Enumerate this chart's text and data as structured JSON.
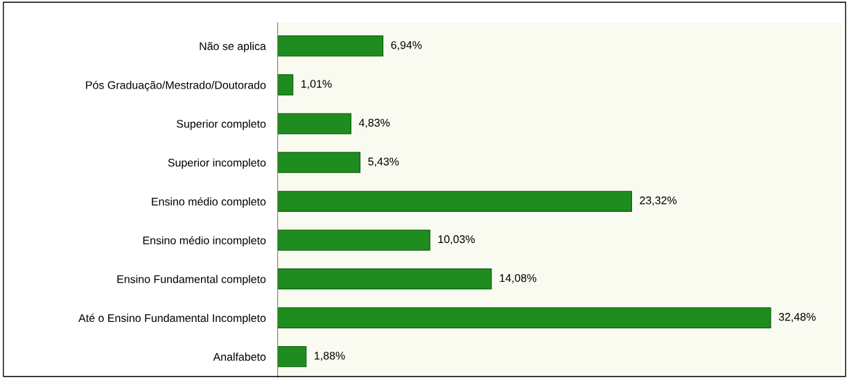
{
  "chart_data": {
    "type": "bar",
    "orientation": "horizontal",
    "categories": [
      "Não se aplica",
      "Pós Graduação/Mestrado/Doutorado",
      "Superior completo",
      "Superior incompleto",
      "Ensino médio completo",
      "Ensino médio incompleto",
      "Ensino Fundamental completo",
      "Até o Ensino Fundamental Incompleto",
      "Analfabeto"
    ],
    "values": [
      6.94,
      1.01,
      4.83,
      5.43,
      23.32,
      10.03,
      14.08,
      32.48,
      1.88
    ],
    "value_labels": [
      "6,94%",
      "1,01%",
      "4,83%",
      "5,43%",
      "23,32%",
      "10,03%",
      "14,08%",
      "32,48%",
      "1,88%"
    ],
    "color": "#1e8c1e",
    "grid": false,
    "legend": false
  }
}
